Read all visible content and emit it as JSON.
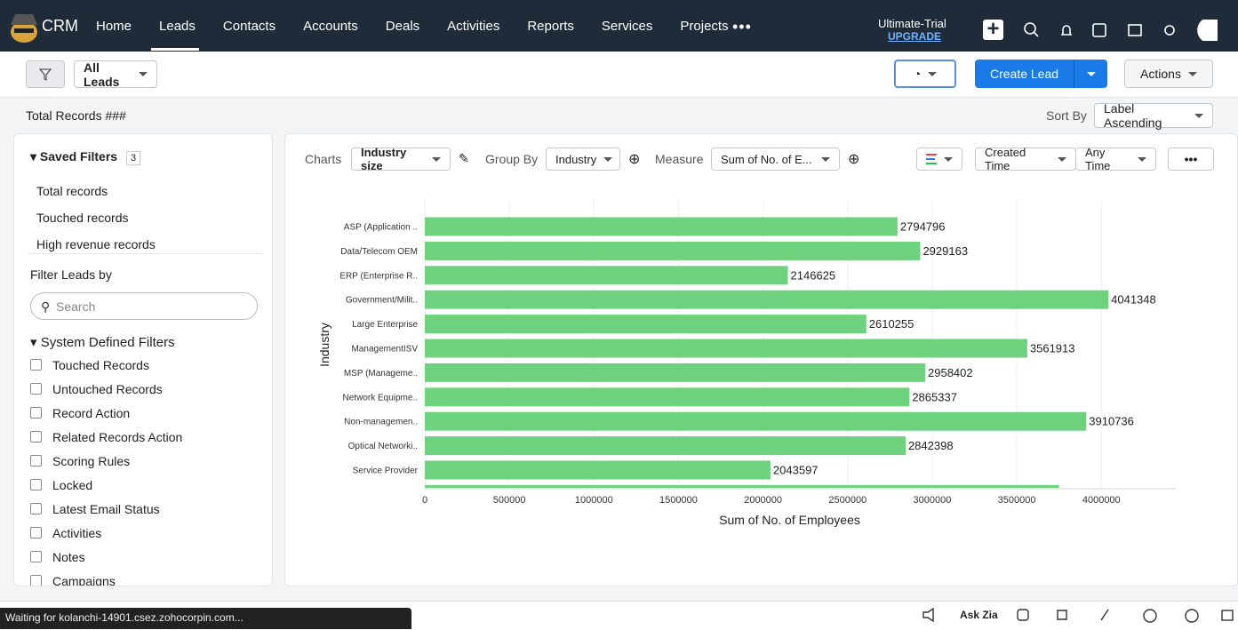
{
  "nav": {
    "brand": "CRM",
    "items": [
      "Home",
      "Leads",
      "Contacts",
      "Accounts",
      "Deals",
      "Activities",
      "Reports",
      "Services",
      "Projects"
    ],
    "trial": "Ultimate-Trial",
    "upgrade": "UPGRADE"
  },
  "toolbar": {
    "view": "All Leads",
    "create": "Create Lead",
    "actions": "Actions"
  },
  "summary": {
    "total": "Total Records ###",
    "sort_label": "Sort By",
    "sort_value": "Label Ascending"
  },
  "sidebar": {
    "saved_title": "Saved Filters",
    "saved_count": 3,
    "saved": [
      "Total records",
      "Touched records",
      "High revenue records"
    ],
    "filter_title": "Filter Leads by",
    "search": "Search",
    "system_title": "System Defined Filters",
    "system": [
      "Touched Records",
      "Untouched Records",
      "Record Action",
      "Related Records Action",
      "Scoring Rules",
      "Locked",
      "Latest Email Status",
      "Activities",
      "Notes",
      "Campaigns"
    ]
  },
  "chart_toolbar": {
    "charts": "Charts",
    "chart_name": "Industry size",
    "group_by": "Group By",
    "group_value": "Industry",
    "measure": "Measure",
    "measure_value": "Sum of No. of E...",
    "created": "Created Time",
    "time": "Any Time"
  },
  "chart_data": {
    "type": "bar",
    "orientation": "horizontal",
    "x_label": "Sum of No. of Employees",
    "y_label": "Industry",
    "categories": [
      "ASP (Application ..",
      "Data/Telecom OEM",
      "ERP (Enterprise R..",
      "Government/Milit..",
      "Large Enterprise",
      "ManagementISV",
      "MSP (Manageme..",
      "Network Equipme..",
      "Non-managemen..",
      "Optical Networki..",
      "Service Provider",
      null
    ],
    "values": [
      2794796,
      2929163,
      2146625,
      4041348,
      2610255,
      3561913,
      2958402,
      2865337,
      3910736,
      2842398,
      2043597,
      3750000
    ],
    "color": "#6dd17e",
    "xlim": [
      0,
      4440000
    ],
    "xticks": [
      0,
      500000,
      1000000,
      1500000,
      2000000,
      2500000,
      3000000,
      3500000,
      4000000
    ],
    "grid": true
  },
  "status": {
    "loading": "Waiting for kolanchi-14901.csez.zohocorpin.com...",
    "ask_zia": "Ask Zia"
  }
}
